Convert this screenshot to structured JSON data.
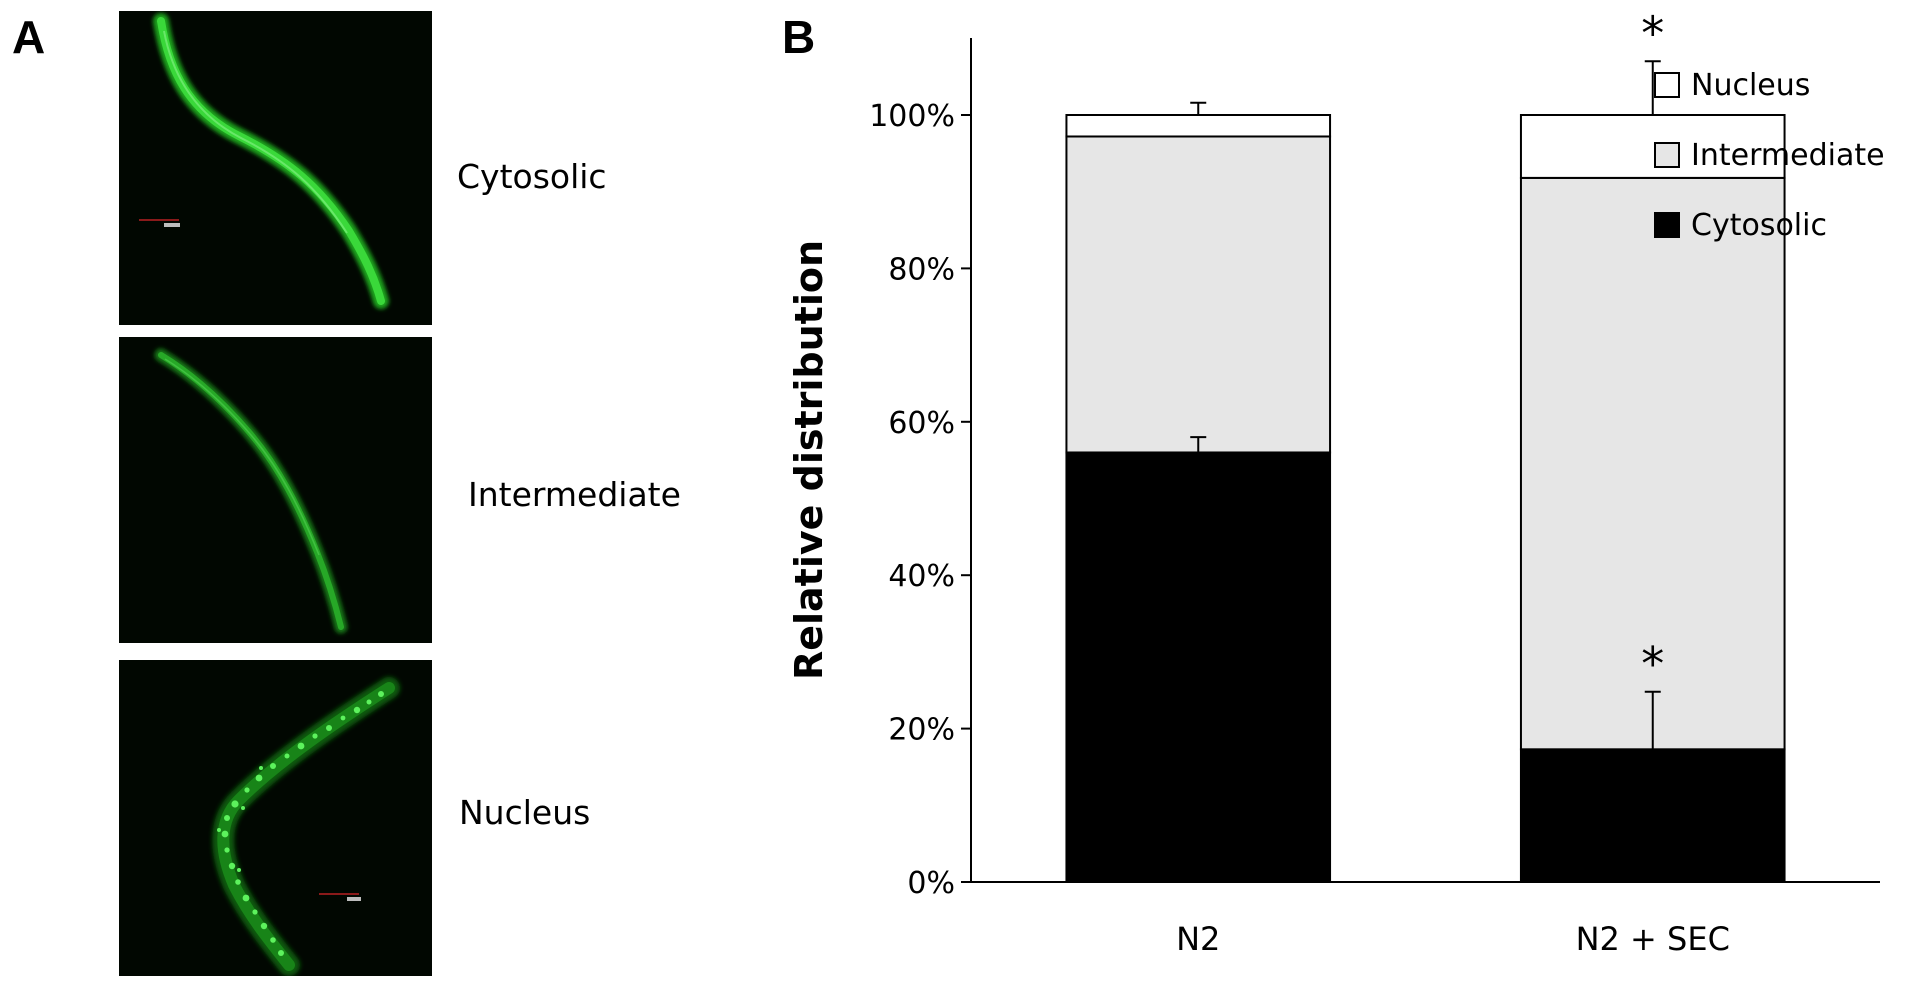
{
  "panel_a": {
    "letter": "A",
    "images": [
      {
        "label": "Cytosolic"
      },
      {
        "label": "Intermediate"
      },
      {
        "label": "Nucleus"
      }
    ]
  },
  "panel_b": {
    "letter": "B"
  },
  "chart_data": {
    "type": "bar",
    "stacked": true,
    "categories": [
      "N2",
      "N2 + SEC"
    ],
    "series": [
      {
        "name": "Cytosolic",
        "values": [
          56,
          17.3
        ],
        "errors": [
          2,
          7.5
        ],
        "color": "#000000"
      },
      {
        "name": "Intermediate",
        "values": [
          41.2,
          74.5
        ],
        "errors": [
          0,
          0
        ],
        "color": "#e6e6e6"
      },
      {
        "name": "Nucleus",
        "values": [
          2.8,
          8.2
        ],
        "errors": [
          1.6,
          7
        ],
        "color": "#ffffff"
      }
    ],
    "significance": [
      {
        "category": "N2 + SEC",
        "series": "Cytosolic",
        "mark": "*"
      },
      {
        "category": "N2 + SEC",
        "series": "Nucleus",
        "mark": "*"
      }
    ],
    "ylabel": "Relative distribution",
    "xlabel": "",
    "title": "",
    "ylim": [
      0,
      100
    ],
    "yticks": [
      "0%",
      "20%",
      "40%",
      "60%",
      "80%",
      "100%"
    ],
    "legend_position": "top-right",
    "grid": false
  }
}
